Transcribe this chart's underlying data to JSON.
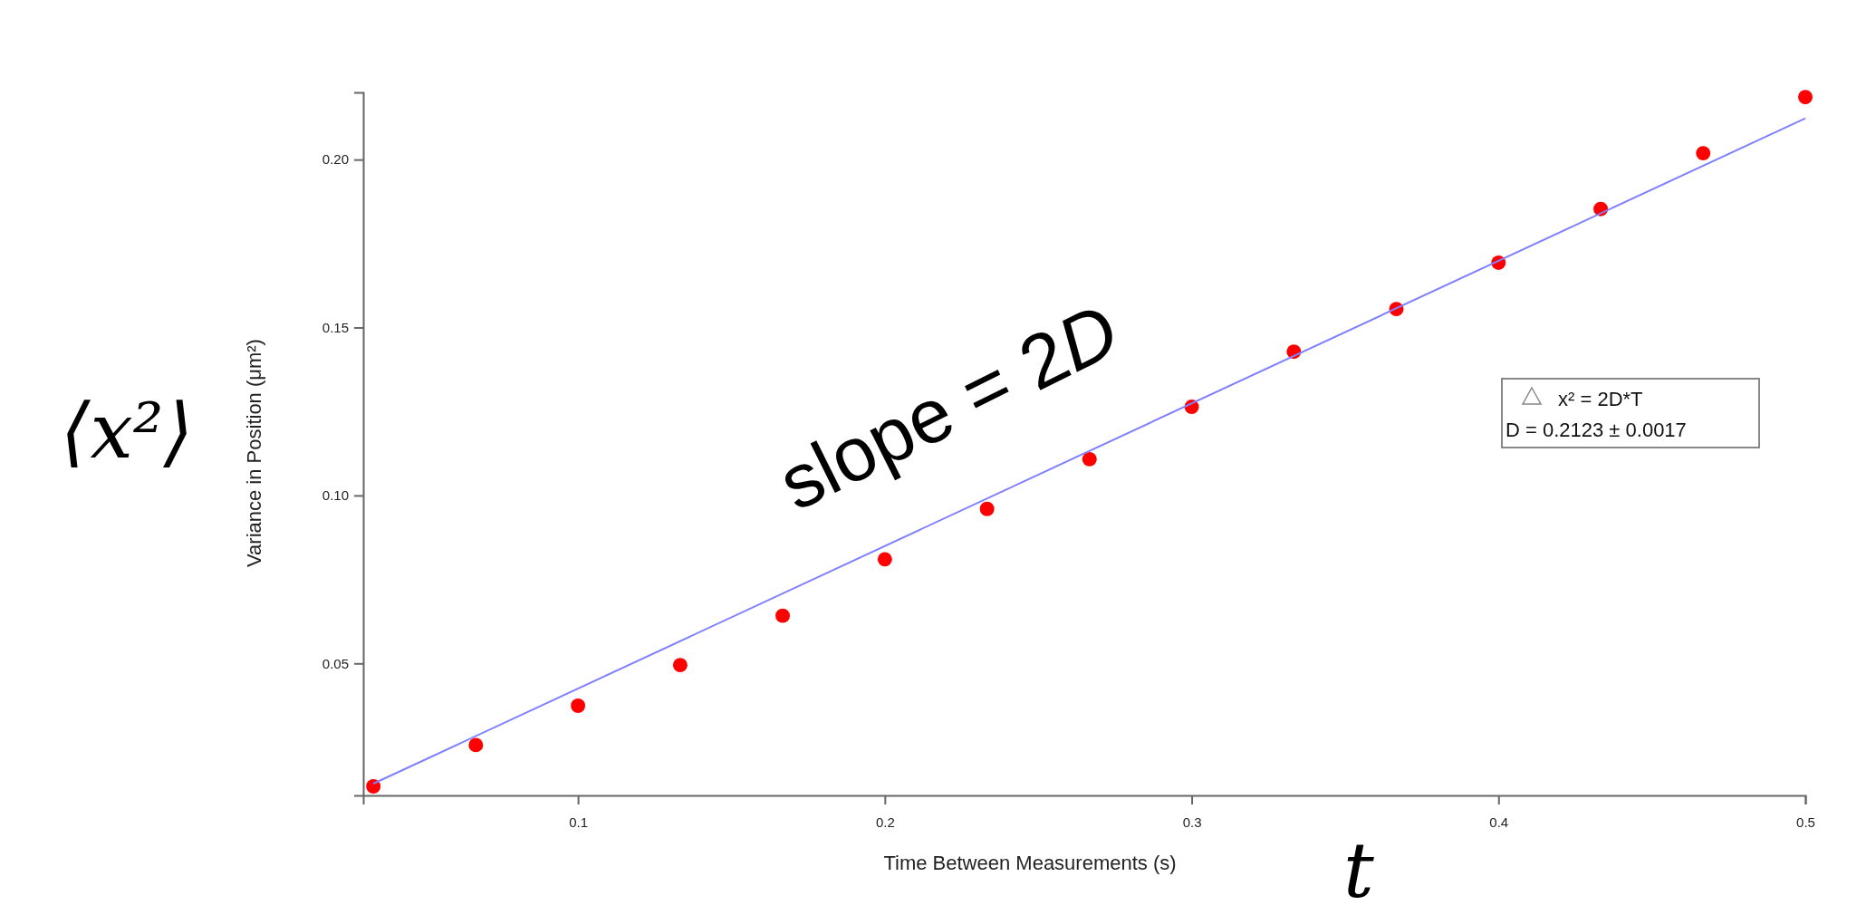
{
  "chart_data": {
    "type": "scatter",
    "xlabel": "Time Between Measurements (s)",
    "ylabel": "Variance in Position (μm²)",
    "xlim": [
      0.03,
      0.5
    ],
    "ylim": [
      0.0107,
      0.22
    ],
    "xticks": [
      0.1,
      0.2,
      0.3,
      0.4,
      0.5
    ],
    "yticks": [
      {
        "value": 0.05,
        "label": "0.05"
      },
      {
        "value": 0.1,
        "label": "0.10"
      },
      {
        "value": 0.15,
        "label": "0.15"
      },
      {
        "value": 0.2,
        "label": "0.20"
      }
    ],
    "grid": false,
    "series": [
      {
        "color": "#ff0000",
        "marker": "circle",
        "x": [
          0.0333,
          0.0667,
          0.1,
          0.1333,
          0.1667,
          0.2,
          0.2333,
          0.2667,
          0.3,
          0.3333,
          0.3667,
          0.4,
          0.4333,
          0.4667,
          0.5
        ],
        "values": [
          0.0134,
          0.0257,
          0.0374,
          0.0495,
          0.0642,
          0.081,
          0.096,
          0.1108,
          0.1264,
          0.1428,
          0.1555,
          0.1693,
          0.1853,
          0.2019,
          0.2186
        ]
      },
      {
        "type": "line",
        "color": "#8080ff",
        "line_style": "solid",
        "x": [
          0.0333,
          0.5
        ],
        "values": [
          0.0142,
          0.2123
        ]
      }
    ],
    "annotations": [
      "slope = 2D",
      "⟨x²⟩",
      "t",
      "x² = 2D*T",
      "D = 0.2123 ± 0.0017"
    ]
  }
}
